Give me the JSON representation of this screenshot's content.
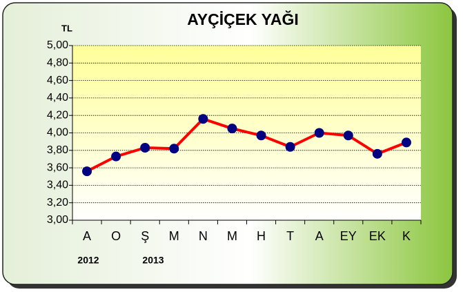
{
  "chart_data": {
    "type": "line",
    "title": "AYÇİÇEK YAĞI",
    "y_label": "TL",
    "annotations": [
      "2012",
      "2013"
    ],
    "categories": [
      "A",
      "O",
      "Ş",
      "M",
      "N",
      "M",
      "H",
      "T",
      "A",
      "EY",
      "EK",
      "K"
    ],
    "series": [
      {
        "name": "AYÇİÇEK YAĞI",
        "color": "#ff0000",
        "marker_color": "#000080",
        "values": [
          3.56,
          3.73,
          3.83,
          3.82,
          4.16,
          4.05,
          3.97,
          3.84,
          4.0,
          3.97,
          3.76,
          3.89
        ]
      }
    ],
    "ylim": [
      3,
      5
    ],
    "yticks": [
      {
        "value": 3,
        "label": "3,00"
      },
      {
        "value": 3.2,
        "label": "3,20"
      },
      {
        "value": 3.4,
        "label": "3,40"
      },
      {
        "value": 3.6,
        "label": "3,60"
      },
      {
        "value": 3.8,
        "label": "3,80"
      },
      {
        "value": 4,
        "label": "4,00"
      },
      {
        "value": 4.2,
        "label": "4,20"
      },
      {
        "value": 4.4,
        "label": "4,40"
      },
      {
        "value": 4.6,
        "label": "4,60"
      },
      {
        "value": 4.8,
        "label": "4,80"
      },
      {
        "value": 5,
        "label": "5,00"
      }
    ],
    "grid": true
  }
}
